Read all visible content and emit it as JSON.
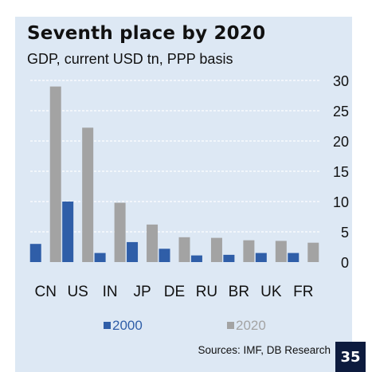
{
  "header": {
    "title": "Seventh place by 2020",
    "subtitle": "GDP, current USD tn, PPP basis"
  },
  "footer": {
    "source": "Sources: IMF, DB Research",
    "page_number": "35"
  },
  "colors": {
    "panel_bg": "#dde8f4",
    "series_2000": "#2f5ea8",
    "series_2020": "#a3a3a3",
    "gridline": "#ffffff",
    "page_badge": "#0d1b3e"
  },
  "chart_data": {
    "type": "bar",
    "title": "Seventh place by 2020",
    "subtitle": "GDP, current USD tn, PPP basis",
    "categories": [
      "CN",
      "US",
      "IN",
      "JP",
      "DE",
      "RU",
      "BR",
      "UK",
      "FR"
    ],
    "series": [
      {
        "name": "2000",
        "color": "#2f5ea8",
        "values": [
          3.0,
          10.0,
          1.5,
          3.3,
          2.2,
          1.1,
          1.2,
          1.5,
          1.5
        ]
      },
      {
        "name": "2020",
        "color": "#a3a3a3",
        "values": [
          29.0,
          22.2,
          9.8,
          6.2,
          4.1,
          4.0,
          3.6,
          3.5,
          3.2
        ]
      }
    ],
    "yticks": [
      0,
      5,
      10,
      15,
      20,
      25,
      30
    ],
    "ylim": [
      0,
      30
    ],
    "y_axis_side": "right",
    "grid": true,
    "legend_position": "bottom"
  }
}
